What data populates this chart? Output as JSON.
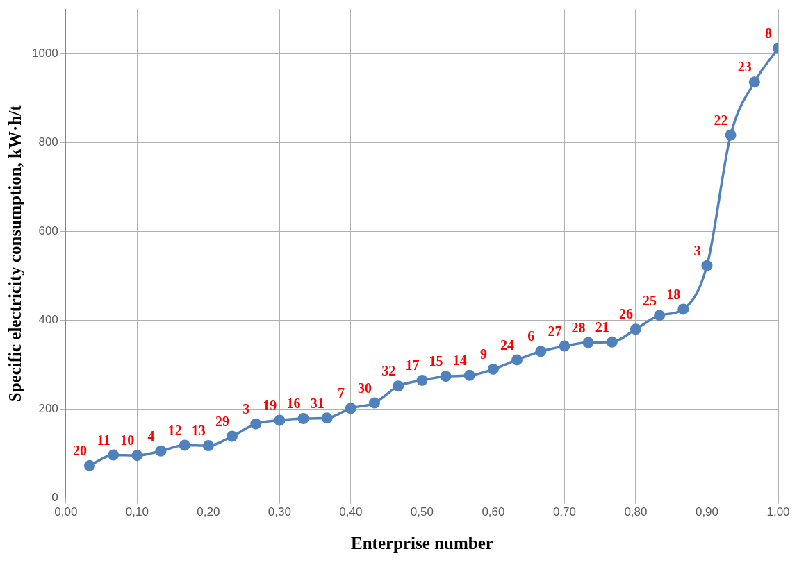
{
  "chart_data": {
    "type": "line",
    "xlabel": "Enterprise number",
    "ylabel": "Specific electricity consumption, kW·h/t",
    "x": [
      0.0333,
      0.0667,
      0.1,
      0.1333,
      0.1667,
      0.2,
      0.2333,
      0.2667,
      0.3,
      0.3333,
      0.3667,
      0.4,
      0.4333,
      0.4667,
      0.5,
      0.5333,
      0.5667,
      0.6,
      0.6333,
      0.6667,
      0.7,
      0.7333,
      0.7667,
      0.8,
      0.8333,
      0.8667,
      0.9,
      0.9333,
      0.9667,
      1.0
    ],
    "series": [
      {
        "color": "#4f81bd",
        "values": [
          73,
          97,
          96,
          106,
          119,
          118,
          139,
          167,
          175,
          179,
          180,
          202,
          214,
          252,
          265,
          274,
          276,
          290,
          311,
          330,
          342,
          350,
          351,
          380,
          411,
          425,
          523,
          817,
          936,
          1012
        ]
      }
    ],
    "marker": "circle",
    "line_style": "solid",
    "grid": true,
    "legend": false,
    "xlim": [
      0,
      1
    ],
    "xticks": [
      {
        "value": 0,
        "label": "0,00"
      },
      {
        "value": 0.1,
        "label": "0,10"
      },
      {
        "value": 0.2,
        "label": "0,20"
      },
      {
        "value": 0.3,
        "label": "0,30"
      },
      {
        "value": 0.4,
        "label": "0,40"
      },
      {
        "value": 0.5,
        "label": "0,50"
      },
      {
        "value": 0.6,
        "label": "0,60"
      },
      {
        "value": 0.7,
        "label": "0,70"
      },
      {
        "value": 0.8,
        "label": "0,80"
      },
      {
        "value": 0.9,
        "label": "0,90"
      },
      {
        "value": 1,
        "label": "1,00"
      }
    ],
    "ylim": [
      0,
      1100
    ],
    "yticks": [
      0,
      200,
      400,
      600,
      800,
      1000
    ],
    "annotations": [
      {
        "text": "20",
        "x": 0.0333,
        "y": 73
      },
      {
        "text": "11",
        "x": 0.0667,
        "y": 97
      },
      {
        "text": "10",
        "x": 0.1,
        "y": 96
      },
      {
        "text": "4",
        "x": 0.1333,
        "y": 106
      },
      {
        "text": "12",
        "x": 0.1667,
        "y": 119
      },
      {
        "text": "13",
        "x": 0.2,
        "y": 118
      },
      {
        "text": "29",
        "x": 0.2333,
        "y": 139
      },
      {
        "text": "3",
        "x": 0.2667,
        "y": 167
      },
      {
        "text": "19",
        "x": 0.3,
        "y": 175
      },
      {
        "text": "16",
        "x": 0.3333,
        "y": 179
      },
      {
        "text": "31",
        "x": 0.3667,
        "y": 180
      },
      {
        "text": "7",
        "x": 0.4,
        "y": 202
      },
      {
        "text": "30",
        "x": 0.4333,
        "y": 214
      },
      {
        "text": "32",
        "x": 0.4667,
        "y": 252
      },
      {
        "text": "17",
        "x": 0.5,
        "y": 265
      },
      {
        "text": "15",
        "x": 0.5333,
        "y": 274
      },
      {
        "text": "14",
        "x": 0.5667,
        "y": 276
      },
      {
        "text": "9",
        "x": 0.6,
        "y": 290
      },
      {
        "text": "24",
        "x": 0.6333,
        "y": 311
      },
      {
        "text": "6",
        "x": 0.6667,
        "y": 330
      },
      {
        "text": "27",
        "x": 0.7,
        "y": 342
      },
      {
        "text": "28",
        "x": 0.7333,
        "y": 350
      },
      {
        "text": "21",
        "x": 0.7667,
        "y": 351
      },
      {
        "text": "26",
        "x": 0.8,
        "y": 380
      },
      {
        "text": "25",
        "x": 0.8333,
        "y": 411
      },
      {
        "text": "18",
        "x": 0.8667,
        "y": 425
      },
      {
        "text": "3",
        "x": 0.9,
        "y": 523
      },
      {
        "text": "22",
        "x": 0.9333,
        "y": 817
      },
      {
        "text": "23",
        "x": 0.9667,
        "y": 936
      },
      {
        "text": "8",
        "x": 1.0,
        "y": 1012
      }
    ]
  }
}
